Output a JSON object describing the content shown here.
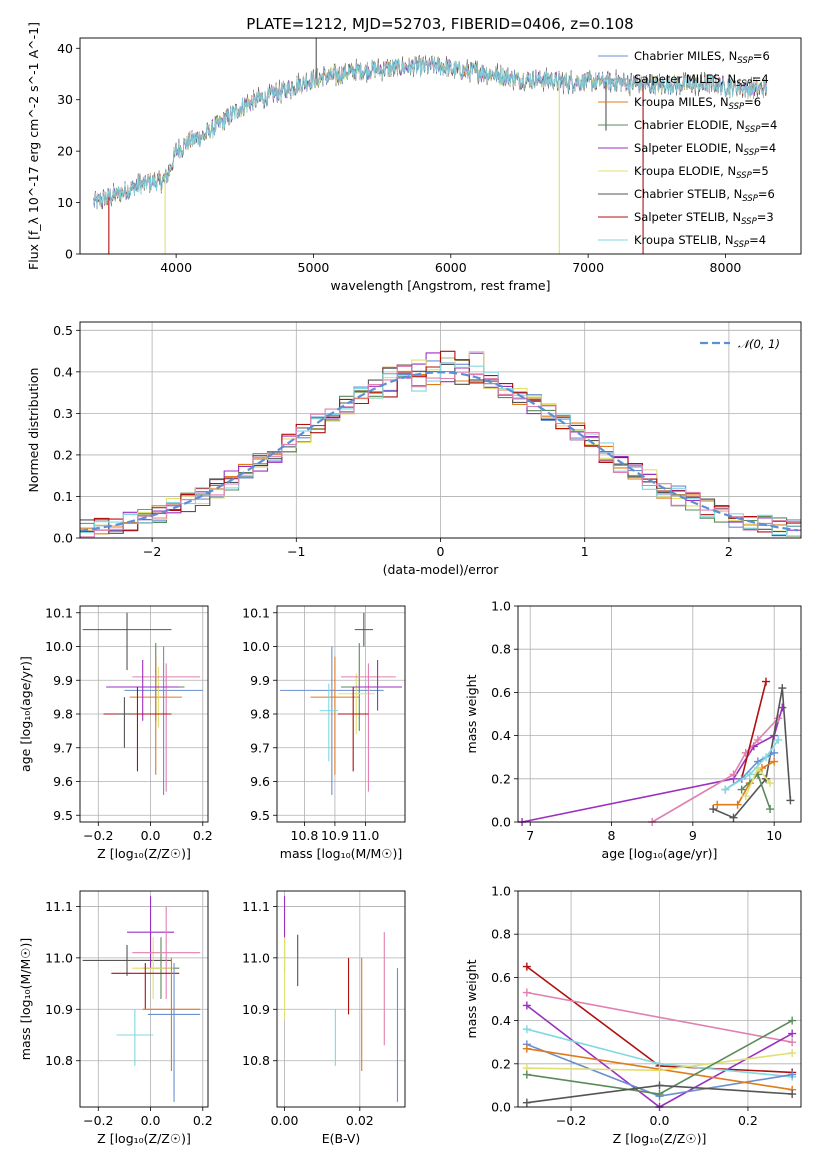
{
  "colors": {
    "Chabrier MILES": "#6a8fd0",
    "Salpeter MILES": "#9aa0a6",
    "Kroupa MILES": "#e07b1a",
    "Chabrier ELODIE": "#5b8a5b",
    "Salpeter ELODIE": "#9b30c0",
    "Kroupa ELODIE": "#e0e070",
    "Chabrier STELIB": "#555555",
    "Salpeter STELIB": "#b01010",
    "Kroupa STELIB": "#80d8e0",
    "extra_pink": "#e080b0",
    "gauss": "#5b8fd8"
  },
  "chart_data": [
    {
      "id": "spectrum",
      "type": "line",
      "title": "PLATE=1212, MJD=52703, FIBERID=0406, z=0.108",
      "xlabel": "wavelength [Angstrom, rest frame]",
      "ylabel": "Flux [f_λ 10^-17 erg cm^-2 s^-1 A^-1]",
      "xlim": [
        3300,
        8550
      ],
      "ylim": [
        0,
        42
      ],
      "xticks": [
        "4000",
        "5000",
        "6000",
        "7000",
        "8000"
      ],
      "yticks": [
        "0",
        "10",
        "20",
        "30",
        "40"
      ],
      "grid": false,
      "legend_position": "upper-right",
      "legend": [
        {
          "label": "Chabrier MILES, N",
          "sub": "SSP",
          "tail": "=6"
        },
        {
          "label": "Salpeter MILES, N",
          "sub": "SSP",
          "tail": "=4"
        },
        {
          "label": "Kroupa MILES, N",
          "sub": "SSP",
          "tail": "=6"
        },
        {
          "label": "Chabrier ELODIE, N",
          "sub": "SSP",
          "tail": "=4"
        },
        {
          "label": "Salpeter ELODIE, N",
          "sub": "SSP",
          "tail": "=4"
        },
        {
          "label": "Kroupa ELODIE, N",
          "sub": "SSP",
          "tail": "=5"
        },
        {
          "label": "Chabrier STELIB, N",
          "sub": "SSP",
          "tail": "=6"
        },
        {
          "label": "Salpeter STELIB, N",
          "sub": "SSP",
          "tail": "=3"
        },
        {
          "label": "Kroupa STELIB, N",
          "sub": "SSP",
          "tail": "=4"
        }
      ],
      "continuum": {
        "x": [
          3400,
          3500,
          3600,
          3700,
          3800,
          3900,
          3950,
          4000,
          4100,
          4200,
          4300,
          4400,
          4500,
          4600,
          4700,
          4800,
          4900,
          5000,
          5100,
          5200,
          5300,
          5400,
          5500,
          5600,
          5700,
          5800,
          5900,
          6000,
          6100,
          6200,
          6300,
          6400,
          6500,
          6600,
          6700,
          6800,
          6900,
          7000,
          7100,
          7200,
          7300,
          7400,
          7500,
          7600,
          7700,
          7800,
          7900,
          8000,
          8100,
          8200,
          8300
        ],
        "y": [
          10,
          11,
          12,
          13,
          14,
          14,
          16,
          20,
          22,
          23,
          25,
          27,
          29,
          30,
          31,
          32,
          33,
          34,
          34.5,
          35,
          35.5,
          35.8,
          36,
          36.2,
          36.4,
          36.5,
          36.6,
          36,
          35.5,
          35.5,
          35,
          34.5,
          34,
          34,
          33.8,
          33.6,
          33.5,
          33.5,
          33.5,
          33.4,
          33.2,
          33,
          32.8,
          33,
          33,
          33,
          33,
          32.5,
          32.5,
          32,
          32
        ]
      },
      "dropouts": [
        {
          "x": 3510,
          "to": 0,
          "series": "Salpeter STELIB"
        },
        {
          "x": 3920,
          "to": 0,
          "series": "Kroupa ELODIE"
        },
        {
          "x": 6790,
          "to": 0,
          "series": "Kroupa ELODIE"
        },
        {
          "x": 7400,
          "to": 0,
          "series": "Salpeter STELIB"
        },
        {
          "x": 7130,
          "to": 24,
          "series": "Chabrier STELIB"
        },
        {
          "x": 5020,
          "to": 42,
          "series": "Chabrier STELIB"
        }
      ]
    },
    {
      "id": "residuals",
      "type": "line",
      "xlabel": "(data-model)/error",
      "ylabel": "Normed distribution",
      "xlim": [
        -2.5,
        2.5
      ],
      "ylim": [
        0,
        0.52
      ],
      "xticks": [
        "−2",
        "−1",
        "0",
        "1",
        "2"
      ],
      "xtick_values": [
        -2,
        -1,
        0,
        1,
        2
      ],
      "yticks": [
        "0.0",
        "0.1",
        "0.2",
        "0.3",
        "0.4",
        "0.5"
      ],
      "ytick_values": [
        0,
        0.1,
        0.2,
        0.3,
        0.4,
        0.5
      ],
      "grid": true,
      "legend_position": "upper-right",
      "legend_label": "𝒩(0, 1)",
      "bin_width": 0.1
    },
    {
      "id": "z-age",
      "type": "scatter",
      "xlabel": "Z [log₁₀(Z/Z☉)]",
      "ylabel": "age  [log₁₀(age/yr)]",
      "xlim": [
        -0.27,
        0.22
      ],
      "ylim": [
        9.48,
        10.12
      ],
      "xticks": [
        "−0.2",
        "0.0",
        "0.2"
      ],
      "xtick_values": [
        -0.2,
        0.0,
        0.2
      ],
      "yticks": [
        "9.5",
        "9.6",
        "9.7",
        "9.8",
        "9.9",
        "10.0",
        "10.1"
      ],
      "ytick_values": [
        9.5,
        9.6,
        9.7,
        9.8,
        9.9,
        10.0,
        10.1
      ],
      "grid": true,
      "points": [
        {
          "series": "Chabrier STELIB",
          "x": -0.09,
          "y": 10.05,
          "xerr": 0.17,
          "yerr": [
            0.12,
            0.05
          ]
        },
        {
          "series": "Chabrier MILES",
          "x": 0.05,
          "y": 9.87,
          "xerr": 0.15,
          "yerr": [
            0.31,
            0.13
          ]
        },
        {
          "series": "Chabrier ELODIE",
          "x": 0.02,
          "y": 9.88,
          "xerr": 0.11,
          "yerr": [
            0.1,
            0.13
          ]
        },
        {
          "series": "Kroupa MILES",
          "x": 0.02,
          "y": 9.85,
          "xerr": 0.1,
          "yerr": [
            0.23,
            0.12
          ]
        },
        {
          "series": "Kroupa ELODIE",
          "x": 0.03,
          "y": 9.88,
          "xerr": 0.07,
          "yerr": [
            0.12,
            0.06
          ]
        },
        {
          "series": "extra_pink",
          "x": 0.06,
          "y": 9.91,
          "xerr": 0.13,
          "yerr": [
            0.34,
            0.04
          ]
        },
        {
          "series": "Salpeter ELODIE",
          "x": -0.03,
          "y": 9.88,
          "xerr": 0.14,
          "yerr": [
            0.1,
            0.08
          ]
        },
        {
          "series": "Salpeter STELIB",
          "x": -0.05,
          "y": 9.8,
          "xerr": 0.13,
          "yerr": [
            0.17,
            0.08
          ]
        },
        {
          "series": "Chabrier STELIB",
          "x": -0.1,
          "y": 9.8,
          "xerr": 0.03,
          "yerr": [
            0.1,
            0.05
          ]
        }
      ]
    },
    {
      "id": "mass-age",
      "type": "scatter",
      "xlabel": "mass [log₁₀(M/M☉)]",
      "ylabel": "",
      "xlim": [
        10.71,
        11.13
      ],
      "ylim": [
        9.48,
        10.12
      ],
      "xticks": [
        "10.8",
        "10.9",
        "11.0"
      ],
      "xtick_values": [
        10.8,
        10.9,
        11.0
      ],
      "yticks": [
        "9.5",
        "9.6",
        "9.7",
        "9.8",
        "9.9",
        "10.0",
        "10.1"
      ],
      "ytick_values": [
        9.5,
        9.6,
        9.7,
        9.8,
        9.9,
        10.0,
        10.1
      ],
      "grid": true,
      "points": [
        {
          "series": "Chabrier STELIB",
          "x": 10.995,
          "y": 10.05,
          "xerr": 0.03,
          "yerr": [
            0.05,
            0.05
          ]
        },
        {
          "series": "Chabrier MILES",
          "x": 10.89,
          "y": 9.87,
          "xerr": 0.17,
          "yerr": [
            0.31,
            0.13
          ]
        },
        {
          "series": "Chabrier ELODIE",
          "x": 10.98,
          "y": 9.88,
          "xerr": 0.06,
          "yerr": [
            0.13,
            0.13
          ]
        },
        {
          "series": "Kroupa MILES",
          "x": 10.9,
          "y": 9.85,
          "xerr": 0.08,
          "yerr": [
            0.23,
            0.12
          ]
        },
        {
          "series": "Kroupa ELODIE",
          "x": 10.97,
          "y": 9.86,
          "xerr": 0.06,
          "yerr": [
            0.12,
            0.06
          ]
        },
        {
          "series": "extra_pink",
          "x": 11.01,
          "y": 9.91,
          "xerr": 0.09,
          "yerr": [
            0.34,
            0.04
          ]
        },
        {
          "series": "Salpeter ELODIE",
          "x": 11.04,
          "y": 9.88,
          "xerr": 0.08,
          "yerr": [
            0.07,
            0.08
          ]
        },
        {
          "series": "Kroupa STELIB",
          "x": 10.88,
          "y": 9.81,
          "xerr": 0.03,
          "yerr": [
            0.15,
            0.08
          ]
        },
        {
          "series": "Salpeter STELIB",
          "x": 10.96,
          "y": 9.8,
          "xerr": 0.05,
          "yerr": [
            0.17,
            0.08
          ]
        }
      ]
    },
    {
      "id": "age-weight",
      "type": "line",
      "xlabel": "age  [log₁₀(age/yr)]",
      "ylabel": "mass weight",
      "xlim": [
        6.85,
        10.33
      ],
      "ylim": [
        0,
        1
      ],
      "xticks": [
        "7",
        "8",
        "9",
        "10"
      ],
      "xtick_values": [
        7,
        8,
        9,
        10
      ],
      "yticks": [
        "0.0",
        "0.2",
        "0.4",
        "0.6",
        "0.8",
        "1.0"
      ],
      "ytick_values": [
        0,
        0.2,
        0.4,
        0.6,
        0.8,
        1.0
      ],
      "grid": true,
      "series": [
        {
          "name": "Salpeter ELODIE",
          "x": [
            6.9,
            9.5,
            9.75,
            10.0,
            10.1
          ],
          "y": [
            0.0,
            0.2,
            0.35,
            0.4,
            0.53
          ]
        },
        {
          "name": "extra_pink",
          "x": [
            8.5,
            9.5,
            9.65,
            9.8,
            10.05
          ],
          "y": [
            0.0,
            0.22,
            0.32,
            0.38,
            0.48
          ]
        },
        {
          "name": "Salpeter STELIB",
          "x": [
            9.6,
            9.9
          ],
          "y": [
            0.2,
            0.65
          ]
        },
        {
          "name": "Chabrier STELIB",
          "x": [
            9.25,
            9.5,
            9.9,
            10.1,
            10.2
          ],
          "y": [
            0.06,
            0.02,
            0.2,
            0.62,
            0.1
          ]
        },
        {
          "name": "Kroupa MILES",
          "x": [
            9.3,
            9.55,
            9.7,
            9.85,
            10.0
          ],
          "y": [
            0.08,
            0.08,
            0.18,
            0.25,
            0.28
          ]
        },
        {
          "name": "Chabrier MILES",
          "x": [
            9.4,
            9.6,
            9.8,
            10.0
          ],
          "y": [
            0.15,
            0.2,
            0.28,
            0.32
          ]
        },
        {
          "name": "Chabrier ELODIE",
          "x": [
            9.6,
            9.8,
            9.95
          ],
          "y": [
            0.15,
            0.22,
            0.06
          ]
        },
        {
          "name": "Kroupa ELODIE",
          "x": [
            9.65,
            9.8,
            9.95
          ],
          "y": [
            0.12,
            0.25,
            0.18
          ]
        },
        {
          "name": "Kroupa STELIB",
          "x": [
            9.4,
            9.7,
            9.9,
            10.05
          ],
          "y": [
            0.15,
            0.22,
            0.3,
            0.38
          ]
        }
      ]
    },
    {
      "id": "z-mass",
      "type": "scatter",
      "xlabel": "Z [log₁₀(Z/Z☉)]",
      "ylabel": "mass [log₁₀(M/M☉)]",
      "xlim": [
        -0.27,
        0.22
      ],
      "ylim": [
        10.71,
        11.13
      ],
      "xticks": [
        "−0.2",
        "0.0",
        "0.2"
      ],
      "xtick_values": [
        -0.2,
        0.0,
        0.2
      ],
      "yticks": [
        "10.8",
        "10.9",
        "11.0",
        "11.1"
      ],
      "ytick_values": [
        10.8,
        10.9,
        11.0,
        11.1
      ],
      "grid": true,
      "points": [
        {
          "series": "Chabrier STELIB",
          "x": -0.09,
          "y": 10.995,
          "xerr": 0.17,
          "yerr": [
            0.03,
            0.03
          ]
        },
        {
          "series": "Salpeter ELODIE",
          "x": 0.0,
          "y": 11.05,
          "xerr": 0.09,
          "yerr": [
            0.07,
            0.07
          ]
        },
        {
          "series": "Chabrier ELODIE",
          "x": 0.04,
          "y": 10.98,
          "xerr": 0.07,
          "yerr": [
            0.06,
            0.06
          ]
        },
        {
          "series": "Kroupa ELODIE",
          "x": 0.01,
          "y": 10.98,
          "xerr": 0.08,
          "yerr": [
            0.06,
            0.06
          ]
        },
        {
          "series": "extra_pink",
          "x": 0.06,
          "y": 11.01,
          "xerr": 0.13,
          "yerr": [
            0.09,
            0.09
          ]
        },
        {
          "series": "Salpeter STELIB",
          "x": -0.02,
          "y": 10.97,
          "xerr": 0.13,
          "yerr": [
            0.07,
            0.02
          ]
        },
        {
          "series": "Kroupa MILES",
          "x": 0.08,
          "y": 10.9,
          "xerr": 0.11,
          "yerr": [
            0.12,
            0.1
          ]
        },
        {
          "series": "Chabrier MILES",
          "x": 0.09,
          "y": 10.89,
          "xerr": 0.1,
          "yerr": [
            0.17,
            0.1
          ]
        },
        {
          "series": "Kroupa STELIB",
          "x": -0.06,
          "y": 10.85,
          "xerr": 0.07,
          "yerr": [
            0.06,
            0.05
          ]
        }
      ]
    },
    {
      "id": "ebv-mass",
      "type": "scatter",
      "xlabel": "E(B-V)",
      "ylabel": "",
      "xlim": [
        -0.002,
        0.032
      ],
      "ylim": [
        10.71,
        11.13
      ],
      "xticks": [
        "0.00",
        "0.02"
      ],
      "xtick_values": [
        0.0,
        0.02
      ],
      "yticks": [
        "10.8",
        "10.9",
        "11.0",
        "11.1"
      ],
      "ytick_values": [
        10.8,
        10.9,
        11.0,
        11.1
      ],
      "grid": true,
      "points": [
        {
          "series": "Salpeter ELODIE",
          "x": 0.0,
          "y": 11.05,
          "xerr": 0,
          "yerr": [
            0.08,
            0.07
          ]
        },
        {
          "series": "Kroupa ELODIE",
          "x": 0.0,
          "y": 10.98,
          "xerr": 0,
          "yerr": [
            0.1,
            0.06
          ]
        },
        {
          "series": "Chabrier STELIB",
          "x": 0.0035,
          "y": 10.995,
          "xerr": 0,
          "yerr": [
            0.05,
            0.05
          ]
        },
        {
          "series": "Kroupa STELIB",
          "x": 0.0135,
          "y": 10.85,
          "xerr": 0,
          "yerr": [
            0.06,
            0.05
          ]
        },
        {
          "series": "Salpeter STELIB",
          "x": 0.017,
          "y": 10.95,
          "xerr": 0,
          "yerr": [
            0.06,
            0.05
          ]
        },
        {
          "series": "Kroupa MILES",
          "x": 0.0205,
          "y": 10.9,
          "xerr": 0,
          "yerr": [
            0.12,
            0.1
          ]
        },
        {
          "series": "extra_pink",
          "x": 0.0265,
          "y": 10.94,
          "xerr": 0,
          "yerr": [
            0.11,
            0.11
          ]
        },
        {
          "series": "Chabrier MILES",
          "x": 0.03,
          "y": 10.85,
          "xerr": 0,
          "yerr": [
            0.13,
            0.13
          ]
        }
      ]
    },
    {
      "id": "z-weight",
      "type": "line",
      "xlabel": "Z [log₁₀(Z/Z☉)]",
      "ylabel": "mass weight",
      "xlim": [
        -0.32,
        0.32
      ],
      "ylim": [
        0,
        1
      ],
      "xticks": [
        "−0.2",
        "0.0",
        "0.2"
      ],
      "xtick_values": [
        -0.2,
        0.0,
        0.2
      ],
      "yticks": [
        "0.0",
        "0.2",
        "0.4",
        "0.6",
        "0.8",
        "1.0"
      ],
      "ytick_values": [
        0,
        0.2,
        0.4,
        0.6,
        0.8,
        1.0
      ],
      "grid": true,
      "series": [
        {
          "name": "Salpeter STELIB",
          "x": [
            -0.3,
            0.0,
            0.3
          ],
          "y": [
            0.65,
            0.19,
            0.16
          ]
        },
        {
          "name": "extra_pink",
          "x": [
            -0.3,
            0.3
          ],
          "y": [
            0.53,
            0.3
          ]
        },
        {
          "name": "Salpeter ELODIE",
          "x": [
            -0.3,
            0.0,
            0.3
          ],
          "y": [
            0.47,
            0.0,
            0.34
          ]
        },
        {
          "name": "Kroupa STELIB",
          "x": [
            -0.3,
            0.0,
            0.3
          ],
          "y": [
            0.36,
            0.2,
            0.14
          ]
        },
        {
          "name": "Chabrier MILES",
          "x": [
            -0.3,
            0.0,
            0.3
          ],
          "y": [
            0.29,
            0.05,
            0.15
          ]
        },
        {
          "name": "Kroupa MILES",
          "x": [
            -0.3,
            0.3
          ],
          "y": [
            0.27,
            0.08
          ]
        },
        {
          "name": "Kroupa ELODIE",
          "x": [
            -0.3,
            0.0,
            0.3
          ],
          "y": [
            0.18,
            0.17,
            0.25
          ]
        },
        {
          "name": "Chabrier ELODIE",
          "x": [
            -0.3,
            0.0,
            0.3
          ],
          "y": [
            0.15,
            0.06,
            0.4
          ]
        },
        {
          "name": "Chabrier STELIB",
          "x": [
            -0.3,
            0.0,
            0.3
          ],
          "y": [
            0.02,
            0.1,
            0.06
          ]
        }
      ]
    }
  ]
}
